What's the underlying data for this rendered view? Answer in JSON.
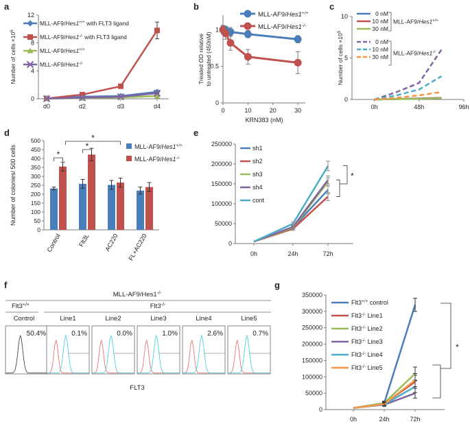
{
  "panel_labels": {
    "a": "a",
    "b": "b",
    "c": "c",
    "d": "d",
    "e": "e",
    "f": "f",
    "g": "g"
  },
  "chart_data": [
    {
      "panel": "a",
      "type": "line",
      "ylabel": "Number of cells ×10^6",
      "ylabel_text": "Number of cells ×10",
      "ylabel_sup": "6",
      "categories": [
        "d0",
        "d2",
        "d3",
        "d4"
      ],
      "ylim": [
        0,
        12
      ],
      "yticks": [
        0,
        4,
        8,
        12
      ],
      "series": [
        {
          "name": "MLL-AF9/Hes1+/+ with FLT3 ligand",
          "label_pre": "MLL-AF9/",
          "label_gene": "Hes1",
          "label_sup": "+/+",
          "label_post": " with FLT3 ligand",
          "color": "#4a7ebb",
          "marker": "diamond",
          "values": [
            0.05,
            0.3,
            0.4,
            1.0
          ],
          "errors": [
            0,
            0,
            0.1,
            0.2
          ]
        },
        {
          "name": "MLL-AF9/Hes1-/- with FLT3 ligand",
          "label_pre": "MLL-AF9/",
          "label_gene": "Hes1",
          "label_sup": "-/-",
          "label_post": " with FLT3 ligand",
          "color": "#c0504d",
          "marker": "square",
          "values": [
            0.05,
            0.6,
            1.8,
            9.8
          ],
          "errors": [
            0,
            0.1,
            0.2,
            1.2
          ]
        },
        {
          "name": "MLL-AF9/Hes1+/+",
          "label_pre": "MLL-AF9/",
          "label_gene": "Hes1",
          "label_sup": "+/+",
          "label_post": "",
          "color": "#9bbb59",
          "marker": "triangle",
          "values": [
            0.02,
            0.1,
            0.2,
            0.4
          ],
          "errors": [
            0,
            0,
            0,
            0.05
          ]
        },
        {
          "name": "MLL-AF9/Hes1-/-",
          "label_pre": "MLL-AF9/",
          "label_gene": "Hes1",
          "label_sup": "-/-",
          "label_post": "",
          "color": "#8064a2",
          "marker": "x",
          "values": [
            0.02,
            0.15,
            0.3,
            0.8
          ],
          "errors": [
            0,
            0,
            0,
            0.1
          ]
        }
      ]
    },
    {
      "panel": "b",
      "type": "line",
      "xlabel": "KRN383 (nM)",
      "ylabel_line1": "Treated OD relative",
      "ylabel_line2": "to untreated (450nM)",
      "xlim": [
        0,
        33
      ],
      "xticks": [
        0,
        10,
        20,
        30
      ],
      "ylim": [
        0,
        1.2
      ],
      "yticks": [
        0,
        0.5,
        1
      ],
      "ytick_labels": [
        "0",
        "0.5",
        "1"
      ],
      "series": [
        {
          "name": "MLL-AF9/Hes1+/+",
          "label_pre": "MLL-AF9/",
          "label_gene": "Hes1",
          "label_sup": "+/+",
          "color": "#4a7ebb",
          "x": [
            0,
            1,
            3,
            10,
            30
          ],
          "values": [
            1.0,
            1.0,
            0.97,
            0.94,
            0.87
          ],
          "errors": [
            0.06,
            0.05,
            0.06,
            0.05,
            0.05
          ]
        },
        {
          "name": "MLL-AF9/Hes1-/-",
          "label_pre": "MLL-AF9/",
          "label_gene": "Hes1",
          "label_sup": "-/-",
          "color": "#c0504d",
          "x": [
            0,
            1,
            3,
            10,
            30
          ],
          "values": [
            1.0,
            0.95,
            0.82,
            0.63,
            0.55
          ],
          "errors": [
            0.05,
            0.08,
            0.1,
            0.1,
            0.15
          ]
        }
      ]
    },
    {
      "panel": "c",
      "type": "line",
      "ylabel": "Number of cells ×10^5",
      "ylabel_text": "Number of cells ×10",
      "ylabel_sup": "5",
      "x_tick_labels": [
        "0h",
        "48h",
        "96h"
      ],
      "xlim": [
        -24,
        96
      ],
      "ylim": [
        0,
        10
      ],
      "yticks": [
        0,
        5,
        10
      ],
      "x": [
        0,
        24,
        48,
        72
      ],
      "groups": [
        {
          "label_pre": "MLL-AF9/",
          "label_gene": "Hes1",
          "label_sup": "+/+"
        },
        {
          "label_pre": "MLL-AF9/",
          "label_gene": "Hes1",
          "label_sup": "-/-"
        }
      ],
      "series": [
        {
          "name": "0 nM (Hes1+/+)",
          "group": 0,
          "color": "#4a7ebb",
          "dash": false,
          "values": [
            0,
            0.05,
            0.12,
            0.2
          ]
        },
        {
          "name": "10 nM (Hes1+/+)",
          "group": 0,
          "color": "#c0504d",
          "dash": false,
          "values": [
            0,
            0.05,
            0.1,
            0.18
          ]
        },
        {
          "name": "30 nM (Hes1+/+)",
          "group": 0,
          "color": "#9bbb59",
          "dash": false,
          "values": [
            0,
            0.04,
            0.08,
            0.15
          ]
        },
        {
          "name": "0 nM (Hes1-/-)",
          "group": 1,
          "color": "#8064a2",
          "dash": true,
          "values": [
            0,
            0.9,
            2.0,
            6.0
          ]
        },
        {
          "name": "10 nM (Hes1-/-)",
          "group": 1,
          "color": "#4bacc6",
          "dash": true,
          "values": [
            0,
            0.5,
            1.2,
            2.8
          ]
        },
        {
          "name": "30 nM (Hes1-/-)",
          "group": 1,
          "color": "#f79646",
          "dash": true,
          "values": [
            0,
            0.2,
            0.5,
            0.9
          ]
        }
      ],
      "legend_labels": [
        "0 nM",
        "10 nM",
        "30 nM",
        "0 nM",
        "10 nM",
        "30 nM"
      ]
    },
    {
      "panel": "d",
      "type": "bar",
      "ylabel": "Number of colonies/ 500 cells",
      "categories": [
        "Control",
        "Flt3L",
        "AC220",
        "FL+AC220"
      ],
      "ylim": [
        0,
        500
      ],
      "yticks": [
        0,
        50,
        100,
        150,
        200,
        250,
        300,
        350,
        400,
        450,
        500
      ],
      "series": [
        {
          "name": "MLL-AF9/Hes1+/+",
          "label_pre": "MLL-AF9/",
          "label_gene": "Hes1",
          "label_sup": "+/+",
          "color": "#4a7ebb",
          "values": [
            232,
            258,
            252,
            220
          ],
          "errors": [
            8,
            25,
            25,
            20
          ]
        },
        {
          "name": "MLL-AF9/Hes1-/-",
          "label_pre": "MLL-AF9/",
          "label_gene": "Hes1",
          "label_sup": "-/-",
          "color": "#c0504d",
          "values": [
            355,
            422,
            265,
            240
          ],
          "errors": [
            25,
            35,
            25,
            25
          ]
        }
      ],
      "annotations": [
        "*",
        "*",
        "*"
      ]
    },
    {
      "panel": "e",
      "type": "line",
      "categories": [
        "0h",
        "24h",
        "72h"
      ],
      "ylim": [
        0,
        250000
      ],
      "yticks": [
        0,
        50000,
        100000,
        150000,
        200000,
        250000
      ],
      "series": [
        {
          "name": "sh1",
          "color": "#4a7ebb",
          "values": [
            5000,
            40000,
            135000
          ],
          "errors": [
            0,
            4000,
            10000
          ]
        },
        {
          "name": "sh2",
          "color": "#c0504d",
          "values": [
            5000,
            37000,
            118000
          ],
          "errors": [
            0,
            4000,
            10000
          ]
        },
        {
          "name": "sh3",
          "color": "#9bbb59",
          "values": [
            5000,
            40000,
            155000
          ],
          "errors": [
            0,
            4000,
            10000
          ]
        },
        {
          "name": "sh4",
          "color": "#8064a2",
          "values": [
            5000,
            42000,
            160000
          ],
          "errors": [
            0,
            4000,
            10000
          ]
        },
        {
          "name": "cont",
          "color": "#4bacc6",
          "values": [
            5000,
            50000,
            195000
          ],
          "errors": [
            0,
            4000,
            12000
          ]
        }
      ],
      "annotations": [
        "*"
      ]
    },
    {
      "panel": "g",
      "type": "line",
      "categories": [
        "0h",
        "24h",
        "72h"
      ],
      "ylim": [
        0,
        350000
      ],
      "yticks": [
        0,
        50000,
        100000,
        150000,
        200000,
        250000,
        300000,
        350000
      ],
      "series": [
        {
          "name": "Flt3+/+ control",
          "label_pre": "Flt3",
          "label_sup": "+/+",
          "label_post": " control",
          "color": "#4a7ebb",
          "values": [
            5000,
            20000,
            320000
          ],
          "errors": [
            0,
            6000,
            20000
          ]
        },
        {
          "name": "Flt3-/- Line1",
          "label_pre": "Flt3",
          "label_sup": "-/-",
          "label_post": " Line1",
          "color": "#c0504d",
          "values": [
            5000,
            18000,
            85000
          ],
          "errors": [
            0,
            5000,
            20000
          ]
        },
        {
          "name": "Flt3-/- Line2",
          "label_pre": "Flt3",
          "label_sup": "-/-",
          "label_post": " Line2",
          "color": "#9bbb59",
          "values": [
            5000,
            20000,
            110000
          ],
          "errors": [
            0,
            5000,
            20000
          ]
        },
        {
          "name": "Flt3-/- Line3",
          "label_pre": "Flt3",
          "label_sup": "-/-",
          "label_post": " Line3",
          "color": "#8064a2",
          "values": [
            5000,
            15000,
            50000
          ],
          "errors": [
            0,
            5000,
            15000
          ]
        },
        {
          "name": "Flt3-/- Line4",
          "label_pre": "Flt3",
          "label_sup": "-/-",
          "label_post": " Line4",
          "color": "#4bacc6",
          "values": [
            5000,
            16000,
            70000
          ],
          "errors": [
            0,
            5000,
            18000
          ]
        },
        {
          "name": "Flt3-/- Line5",
          "label_pre": "Flt3",
          "label_sup": "-/-",
          "label_post": " Line5",
          "color": "#f79646",
          "values": [
            5000,
            17000,
            90000
          ],
          "errors": [
            0,
            5000,
            20000
          ]
        }
      ],
      "annotations": [
        "*"
      ]
    }
  ],
  "flow_panel": {
    "title": "MLL-AF9/Hes1",
    "title_sup": "-/-",
    "wt_group": "Flt3",
    "wt_sup": "+/+",
    "ko_group": "Flt3",
    "ko_sup": "-/-",
    "xlabel": "FLT3",
    "columns": [
      {
        "name": "Control",
        "pct": "50.4%"
      },
      {
        "name": "Line1",
        "pct": "0.1%"
      },
      {
        "name": "Line2",
        "pct": "0.0%"
      },
      {
        "name": "Line3",
        "pct": "1.0%"
      },
      {
        "name": "Line4",
        "pct": "2.6%"
      },
      {
        "name": "Line5",
        "pct": "0.7%"
      }
    ]
  }
}
